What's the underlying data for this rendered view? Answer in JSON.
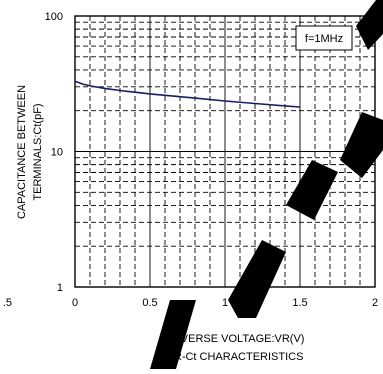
{
  "chart_data": {
    "type": "line",
    "title": "VR-Ct CHARACTERISTICS",
    "xlabel": "REVERSE VOLTAGE:VR(V)",
    "ylabel_line1": "CAPACITANCE BETWEEN",
    "ylabel_line2": "TERMINALS:Ct(pF)",
    "y_scale": "log",
    "xlim": [
      0,
      2
    ],
    "ylim": [
      1,
      100
    ],
    "x_tick_labels": [
      "0",
      "0.5",
      "1",
      "1.5",
      "2"
    ],
    "x_tick_values": [
      0,
      0.5,
      1,
      1.5,
      2
    ],
    "y_tick_labels": [
      "1",
      "10",
      "100"
    ],
    "y_tick_values": [
      1,
      10,
      100
    ],
    "left_edge_tick_label": ".5",
    "annotation": "f=1MHz",
    "grid": true,
    "series": [
      {
        "x": [
          0,
          0.05,
          0.1,
          0.2,
          0.3,
          0.4,
          0.5,
          0.6,
          0.8,
          1.0,
          1.2,
          1.4,
          1.5
        ],
        "y": [
          33,
          31.5,
          30.5,
          29.2,
          28.2,
          27.4,
          26.6,
          26.0,
          24.8,
          23.6,
          22.6,
          21.7,
          21.3
        ],
        "color": "#1c1c64"
      }
    ]
  }
}
